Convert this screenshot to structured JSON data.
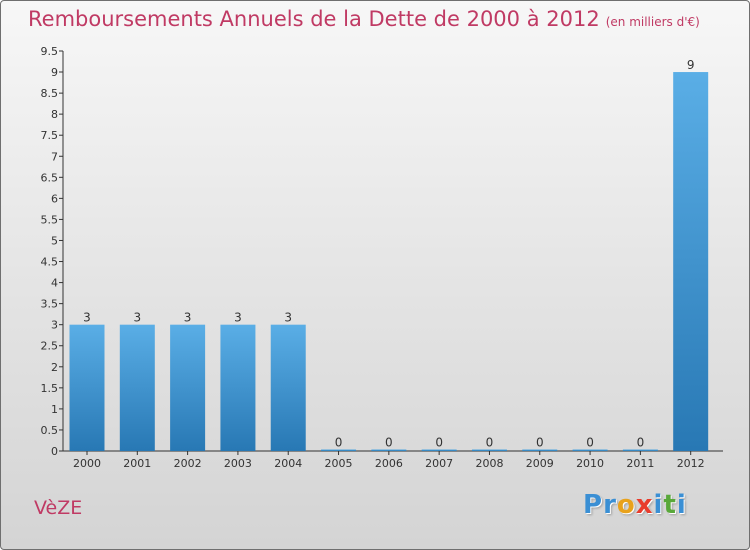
{
  "header": {
    "title": "Remboursements Annuels de la Dette de 2000 à 2012",
    "unit": "(en milliers d'€)"
  },
  "footer": {
    "town": "VèZE",
    "logo_letters": [
      "P",
      "r",
      "o",
      "x",
      "i",
      "t",
      "i"
    ]
  },
  "colors": {
    "title": "#c03a64",
    "bar_top": "#5aaee6",
    "bar_bottom": "#2878b4",
    "logo": [
      "#3a8fd4",
      "#3a8fd4",
      "#e8a21c",
      "#e83c2c",
      "#3a8fd4",
      "#59a83a",
      "#3a8fd4"
    ]
  },
  "chart_data": {
    "type": "bar",
    "categories": [
      "2000",
      "2001",
      "2002",
      "2003",
      "2004",
      "2005",
      "2006",
      "2007",
      "2008",
      "2009",
      "2010",
      "2011",
      "2012"
    ],
    "values": [
      3,
      3,
      3,
      3,
      3,
      0,
      0,
      0,
      0,
      0,
      0,
      0,
      9
    ],
    "data_labels": [
      "3",
      "3",
      "3",
      "3",
      "3",
      "0",
      "0",
      "0",
      "0",
      "0",
      "0",
      "0",
      "9"
    ],
    "y_ticks": [
      "0",
      "0.5",
      "1",
      "1.5",
      "2",
      "2.5",
      "3",
      "3.5",
      "4",
      "4.5",
      "5",
      "5.5",
      "6",
      "6.5",
      "7",
      "7.5",
      "8",
      "8.5",
      "9",
      "9.5"
    ],
    "ylim": [
      0,
      9.5
    ],
    "grid": false,
    "legend": "none"
  }
}
